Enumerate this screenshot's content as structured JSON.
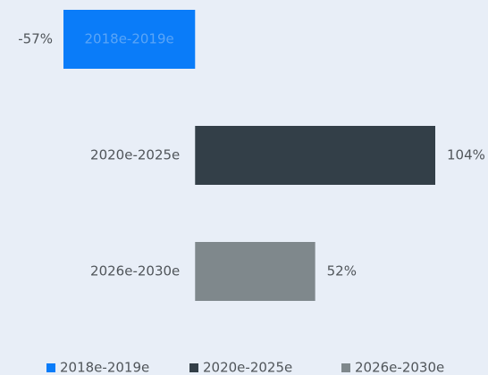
{
  "chart_data": {
    "type": "barh",
    "categories": [
      "2018e-2019e",
      "2020e-2025e",
      "2026e-2030e"
    ],
    "values": [
      -57,
      104,
      52
    ],
    "value_labels": [
      "-57%",
      "104%",
      "52%"
    ],
    "colors": [
      "#0a7cf9",
      "#333f48",
      "#7f888c"
    ],
    "legend": "bottom"
  }
}
